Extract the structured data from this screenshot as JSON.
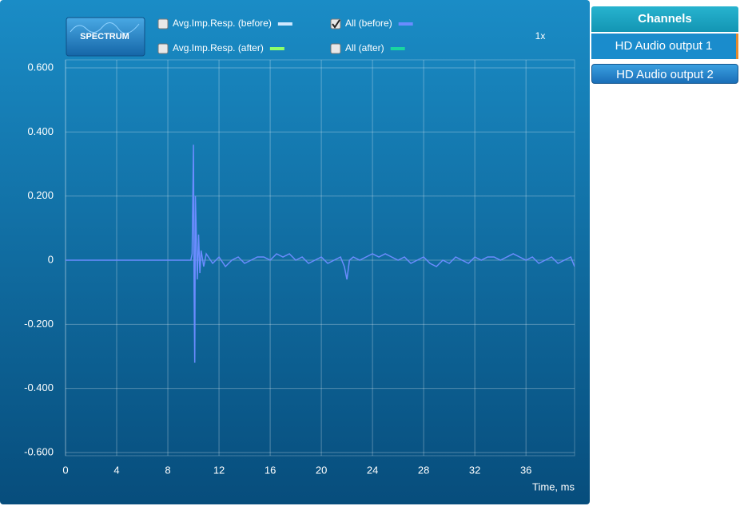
{
  "spectrum_button": "SPECTRUM",
  "zoom": "1x",
  "legend": [
    {
      "label": "Avg.Imp.Resp. (before)",
      "checked": false,
      "color": "#cfe8ff"
    },
    {
      "label": "All (before)",
      "checked": true,
      "color": "#6b8cff"
    },
    {
      "label": "Avg.Imp.Resp. (after)",
      "checked": false,
      "color": "#8dff6a"
    },
    {
      "label": "All (after)",
      "checked": false,
      "color": "#19d6a0"
    }
  ],
  "channels": {
    "title": "Channels",
    "items": [
      "HD Audio output 1",
      "HD Audio output 2"
    ],
    "selected": 0
  },
  "chart_data": {
    "type": "line",
    "x_label": "Time, ms",
    "x": [
      0,
      9.8,
      9.9,
      10.0,
      10.05,
      10.1,
      10.15,
      10.2,
      10.3,
      10.4,
      10.5,
      10.6,
      10.8,
      11,
      11.5,
      12,
      12.5,
      13,
      13.5,
      14,
      14.5,
      15,
      15.5,
      16,
      16.5,
      17,
      17.5,
      18,
      18.5,
      19,
      19.5,
      20,
      20.5,
      21,
      21.5,
      21.8,
      22,
      22.2,
      22.5,
      23,
      23.5,
      24,
      24.5,
      25,
      25.5,
      26,
      26.5,
      27,
      27.5,
      28,
      28.5,
      29,
      29.5,
      30,
      30.5,
      31,
      31.5,
      32,
      32.5,
      33,
      33.5,
      34,
      34.5,
      35,
      35.5,
      36,
      36.5,
      37,
      37.5,
      38,
      38.5,
      39,
      39.5,
      39.8
    ],
    "series": [
      {
        "name": "All (before)",
        "color": "#6b8cff",
        "values": [
          0,
          0,
          0.02,
          0.36,
          -0.1,
          -0.32,
          0.2,
          0.12,
          -0.06,
          0.08,
          -0.04,
          0.03,
          -0.02,
          0.02,
          -0.01,
          0.01,
          -0.02,
          0.0,
          0.01,
          -0.01,
          0.0,
          0.01,
          0.01,
          0.0,
          0.02,
          0.01,
          0.02,
          0.0,
          0.01,
          -0.01,
          0.0,
          0.01,
          -0.01,
          0.0,
          0.01,
          -0.02,
          -0.06,
          0.0,
          0.01,
          0.0,
          0.01,
          0.02,
          0.01,
          0.02,
          0.01,
          0.0,
          0.01,
          -0.01,
          0.0,
          0.01,
          -0.01,
          -0.02,
          0.0,
          -0.01,
          0.01,
          0.0,
          -0.01,
          0.01,
          0.0,
          0.01,
          0.01,
          0.0,
          0.01,
          0.02,
          0.01,
          0.0,
          0.01,
          -0.01,
          0.0,
          0.01,
          -0.01,
          0.0,
          0.01,
          -0.02
        ]
      }
    ],
    "xlim": [
      0,
      39.8
    ],
    "xticks": [
      0,
      4,
      8,
      12,
      16,
      20,
      24,
      28,
      32,
      36
    ],
    "ylim": [
      -0.6,
      0.6
    ],
    "yticks": [
      {
        "value": 0.6,
        "label": "0.600"
      },
      {
        "value": 0.4,
        "label": "0.400"
      },
      {
        "value": 0.2,
        "label": "0.200"
      },
      0,
      {
        "value": -0.2,
        "label": "-0.200"
      },
      {
        "value": -0.4,
        "label": "-0.400"
      },
      {
        "value": -0.6,
        "label": "-0.600"
      }
    ],
    "grid": true
  }
}
